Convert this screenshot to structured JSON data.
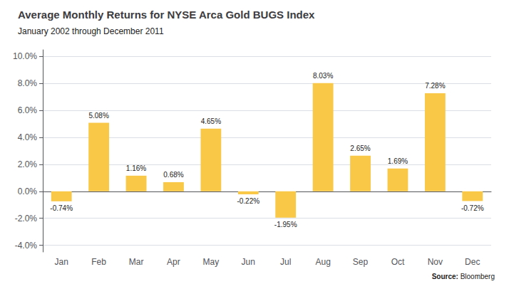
{
  "chart_data": {
    "type": "bar",
    "title": "Average Monthly Returns for NYSE Arca Gold BUGS Index",
    "subtitle": "January 2002 through December 2011",
    "categories": [
      "Jan",
      "Feb",
      "Mar",
      "Apr",
      "May",
      "Jun",
      "Jul",
      "Aug",
      "Sep",
      "Oct",
      "Nov",
      "Dec"
    ],
    "values": [
      -0.74,
      5.08,
      1.16,
      0.68,
      4.65,
      -0.22,
      -1.95,
      8.03,
      2.65,
      1.69,
      7.28,
      -0.72
    ],
    "value_labels": [
      "-0.74%",
      "5.08%",
      "1.16%",
      "0.68%",
      "4.65%",
      "-0.22%",
      "-1.95%",
      "8.03%",
      "2.65%",
      "1.69%",
      "7.28%",
      "-0.72%"
    ],
    "data_labels": true,
    "color": "#F9C846",
    "ylim": [
      -4.5,
      10.5
    ],
    "yticks": [
      {
        "value": -4.0,
        "label": "-4.0%"
      },
      {
        "value": -2.0,
        "label": "-2.0%"
      },
      {
        "value": 0.0,
        "label": "0.0%"
      },
      {
        "value": 2.0,
        "label": "2.0%"
      },
      {
        "value": 4.0,
        "label": "4.0%"
      },
      {
        "value": 6.0,
        "label": "6.0%"
      },
      {
        "value": 8.0,
        "label": "8.0%"
      },
      {
        "value": 10.0,
        "label": "10.0%"
      }
    ],
    "grid": true,
    "annotations": [
      "Source:",
      "Bloomberg"
    ]
  }
}
